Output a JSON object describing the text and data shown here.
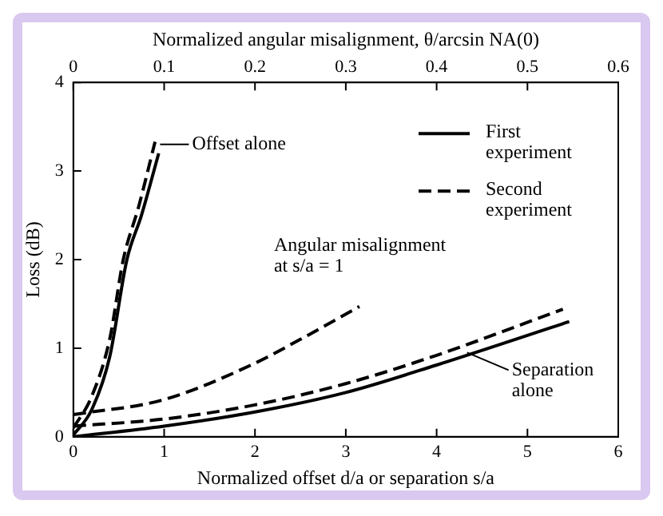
{
  "chart_data": {
    "type": "line",
    "xlabel": "Normalized offset d/a or separation s/a",
    "ylabel": "Loss (dB)",
    "x2label": "Normalized angular misalignment, θ/arcsin NA(0)",
    "xlim": [
      0,
      6
    ],
    "xticks": [
      0,
      1,
      2,
      3,
      4,
      5,
      6
    ],
    "x2lim": [
      0,
      0.6
    ],
    "x2ticks": [
      0,
      0.1,
      0.2,
      0.3,
      0.4,
      0.5,
      0.6
    ],
    "ylim": [
      0,
      4
    ],
    "yticks": [
      0,
      1,
      2,
      3,
      4
    ],
    "grid": false,
    "legend": "top right",
    "marker": "none",
    "series": [
      {
        "name": "First experiment",
        "color": "#000000",
        "line_style": "solid",
        "x": [
          0,
          0.2,
          0.4,
          0.59,
          0.75,
          0.94
        ],
        "values": [
          0.02,
          0.3,
          0.9,
          2.0,
          2.5,
          3.2
        ]
      },
      {
        "name": "Second experiment",
        "color": "#000000",
        "line_style": "dashed",
        "x": [
          0,
          0.2,
          0.4,
          0.55,
          0.72,
          0.9
        ],
        "values": [
          0.1,
          0.45,
          1.1,
          2.0,
          2.6,
          3.33
        ]
      },
      {
        "color": "#000000",
        "line_style": "solid",
        "x": [
          0,
          1,
          2,
          3,
          4,
          5.46
        ],
        "values": [
          0,
          0.12,
          0.28,
          0.5,
          0.81,
          1.3
        ]
      },
      {
        "color": "#000000",
        "line_style": "dashed",
        "x": [
          0,
          1,
          2,
          3,
          4,
          5.39
        ],
        "values": [
          0.12,
          0.2,
          0.36,
          0.6,
          0.92,
          1.44
        ]
      },
      {
        "color": "#000000",
        "line_style": "dashed",
        "x": [
          0,
          1,
          2,
          2.5,
          3.15
        ],
        "values": [
          0.25,
          0.42,
          0.83,
          1.1,
          1.47
        ]
      }
    ],
    "annotations": [
      {
        "text": "Offset alone",
        "x": 0.92,
        "y": 3.3
      },
      {
        "text": "Angular misalignment at s/a = 1",
        "x": 3.0,
        "y": 1.4
      },
      {
        "text": "Separation alone",
        "x": 4.3,
        "y": 0.95
      }
    ]
  }
}
